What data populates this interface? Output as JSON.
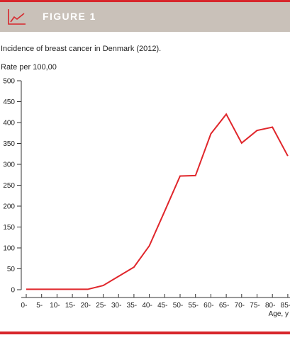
{
  "header": {
    "figure_label": "FIGURE 1",
    "icon": "line-chart-icon",
    "background_color": "#c9c1b9",
    "accent_color": "#d7262b"
  },
  "chart_data": {
    "type": "line",
    "title": "Incidence of breast cancer in Denmark (2012).",
    "ylabel": "Rate per 100,00",
    "xlabel": "Age, y",
    "ylim": [
      0,
      500
    ],
    "yticks": [
      0,
      50,
      100,
      150,
      200,
      250,
      300,
      350,
      400,
      450,
      500
    ],
    "categories": [
      "0-",
      "5-",
      "10-",
      "15-",
      "20-",
      "25-",
      "30-",
      "35-",
      "40-",
      "45-",
      "50-",
      "55-",
      "60-",
      "65-",
      "70-",
      "75-",
      "80-",
      "85-"
    ],
    "series": [
      {
        "color": "#e0262b",
        "values": [
          1,
          1,
          1,
          1,
          1,
          10,
          32,
          54,
          105,
          188,
          272,
          273,
          373,
          420,
          351,
          381,
          389,
          320
        ]
      }
    ],
    "grid": false,
    "legend": "none"
  }
}
